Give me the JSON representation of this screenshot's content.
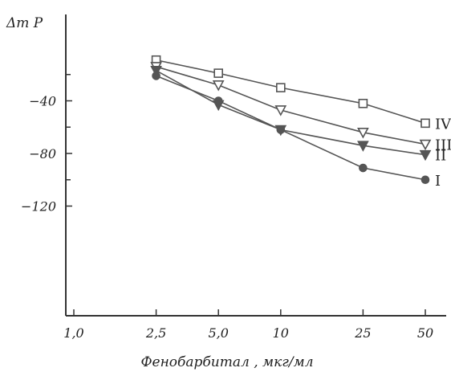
{
  "chart_data": {
    "type": "line",
    "ylabel": "Δm P",
    "xlabel": "Фенобарбитал , мкг/мл",
    "x_scale": "log",
    "xlim": [
      1.0,
      50
    ],
    "ylim": [
      -120,
      0
    ],
    "y_ticks": [
      -40,
      -80,
      -120
    ],
    "y_tick_labels": [
      "−40",
      "−80",
      "−120"
    ],
    "x_ticks": [
      1.0,
      2.5,
      5.0,
      10,
      25,
      50
    ],
    "x_tick_labels": [
      "1,0",
      "2,5",
      "5,0",
      "10",
      "25",
      "50"
    ],
    "grid": false,
    "line_color": "#555555",
    "series": [
      {
        "name": "IV",
        "marker": "open-square",
        "x": [
          2.5,
          5.0,
          10,
          25,
          50
        ],
        "y": [
          -9,
          -19,
          -30,
          -42,
          -57
        ]
      },
      {
        "name": "III",
        "marker": "open-triangle-down",
        "x": [
          2.5,
          5.0,
          10,
          25,
          50
        ],
        "y": [
          -14,
          -28,
          -47,
          -64,
          -73
        ]
      },
      {
        "name": "II",
        "marker": "filled-triangle-down",
        "x": [
          2.5,
          5.0,
          10,
          25,
          50
        ],
        "y": [
          -17,
          -43,
          -62,
          -74,
          -81
        ]
      },
      {
        "name": "I",
        "marker": "filled-circle",
        "x": [
          2.5,
          5.0,
          10,
          25,
          50
        ],
        "y": [
          -21,
          -40,
          -62,
          -91,
          -100
        ]
      }
    ]
  }
}
